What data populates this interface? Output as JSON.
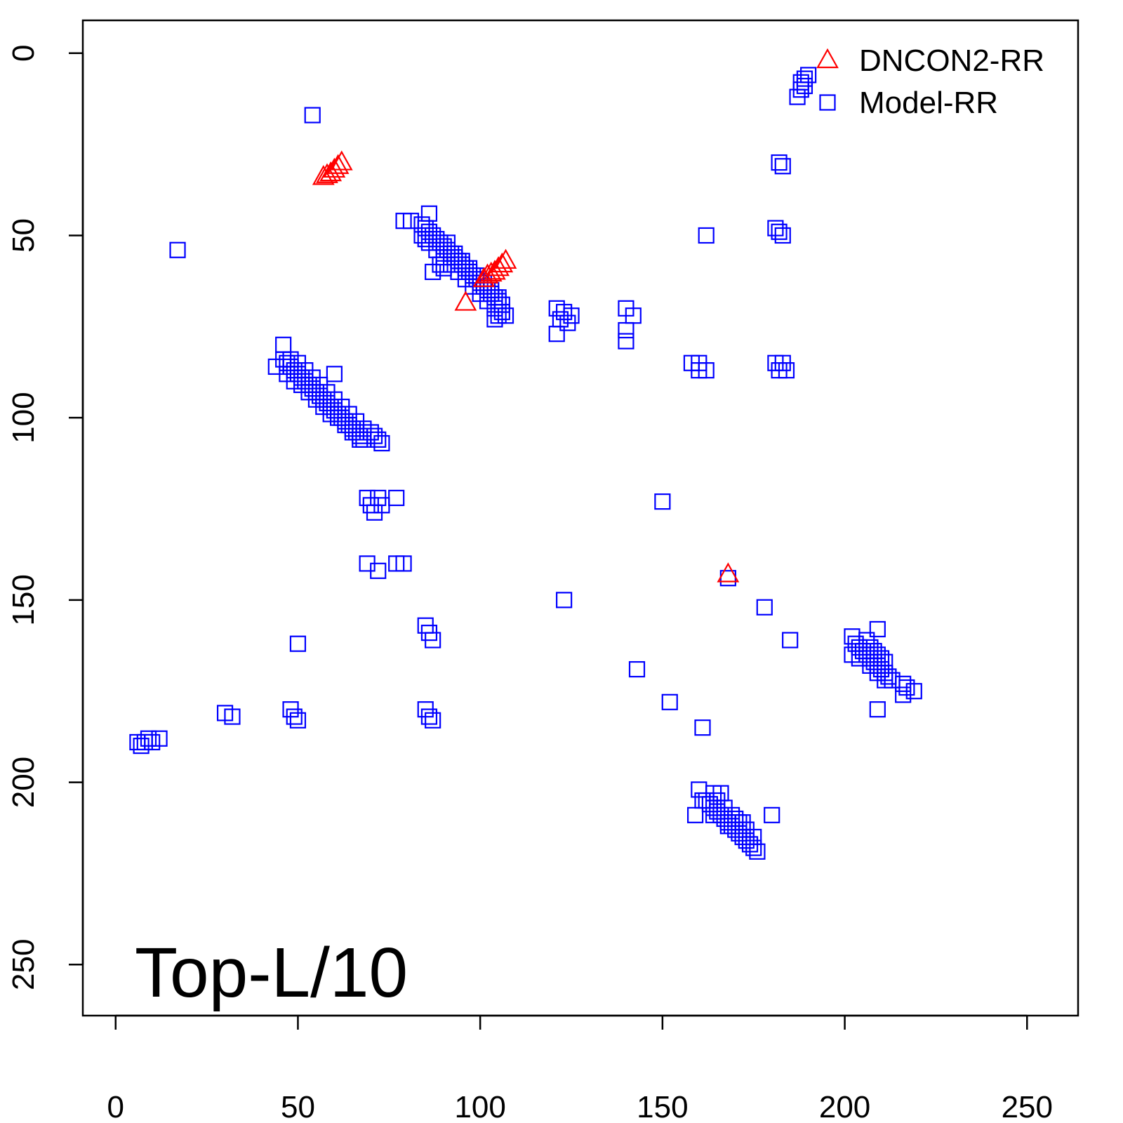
{
  "chart_data": {
    "type": "scatter",
    "title": "",
    "xlabel": "",
    "ylabel": "",
    "xlim": [
      -9,
      264
    ],
    "ylim": [
      -9,
      264
    ],
    "y_reversed": true,
    "xticks": [
      0,
      50,
      100,
      150,
      200,
      250
    ],
    "yticks": [
      0,
      50,
      100,
      150,
      200,
      250
    ],
    "annotation": "Top-L/10",
    "legend": {
      "position": "top-right",
      "entries": [
        {
          "name": "DNCON2-RR",
          "marker": "triangle",
          "color": "#ff0000"
        },
        {
          "name": "Model-RR",
          "marker": "square",
          "color": "#0000ff"
        }
      ]
    },
    "series": [
      {
        "name": "DNCON2-RR",
        "marker": "triangle",
        "color": "#ff0000",
        "points": [
          [
            57,
            34
          ],
          [
            58,
            33.5
          ],
          [
            59,
            33
          ],
          [
            60,
            32
          ],
          [
            61,
            31
          ],
          [
            62,
            30
          ],
          [
            101,
            62
          ],
          [
            102,
            61
          ],
          [
            103,
            60.5
          ],
          [
            104,
            60
          ],
          [
            105,
            59
          ],
          [
            106,
            58
          ],
          [
            107,
            57
          ],
          [
            96,
            68.5
          ],
          [
            168,
            143
          ]
        ]
      },
      {
        "name": "Model-RR",
        "marker": "square",
        "color": "#0000ff",
        "points": [
          [
            54,
            17
          ],
          [
            17,
            54
          ],
          [
            188,
            8
          ],
          [
            189,
            7
          ],
          [
            190,
            6
          ],
          [
            189,
            9
          ],
          [
            188,
            10
          ],
          [
            187,
            12
          ],
          [
            182,
            30
          ],
          [
            183,
            31
          ],
          [
            162,
            50
          ],
          [
            181,
            48
          ],
          [
            182,
            49
          ],
          [
            183,
            50
          ],
          [
            86,
            44
          ],
          [
            79,
            46
          ],
          [
            81,
            46
          ],
          [
            84,
            47
          ],
          [
            85,
            48
          ],
          [
            86,
            49
          ],
          [
            87,
            50
          ],
          [
            88,
            51
          ],
          [
            89,
            52
          ],
          [
            90,
            53
          ],
          [
            91,
            54
          ],
          [
            92,
            55
          ],
          [
            93,
            56
          ],
          [
            94,
            57
          ],
          [
            95,
            58
          ],
          [
            96,
            59
          ],
          [
            97,
            60
          ],
          [
            98,
            61
          ],
          [
            99,
            62
          ],
          [
            100,
            63
          ],
          [
            101,
            64
          ],
          [
            102,
            65
          ],
          [
            103,
            66
          ],
          [
            104,
            67
          ],
          [
            105,
            68
          ],
          [
            106,
            69
          ],
          [
            84,
            50
          ],
          [
            85,
            51
          ],
          [
            86,
            52
          ],
          [
            88,
            54
          ],
          [
            90,
            56
          ],
          [
            92,
            58
          ],
          [
            94,
            60
          ],
          [
            96,
            62
          ],
          [
            98,
            64
          ],
          [
            100,
            66
          ],
          [
            102,
            68
          ],
          [
            104,
            70
          ],
          [
            91,
            52
          ],
          [
            93,
            55
          ],
          [
            95,
            57
          ],
          [
            97,
            59
          ],
          [
            99,
            61
          ],
          [
            101,
            63
          ],
          [
            103,
            65
          ],
          [
            105,
            67
          ],
          [
            87,
            60
          ],
          [
            89,
            58
          ],
          [
            90,
            59
          ],
          [
            106,
            71
          ],
          [
            105,
            72
          ],
          [
            104,
            73
          ],
          [
            107,
            72
          ],
          [
            121,
            70
          ],
          [
            123,
            71
          ],
          [
            125,
            72
          ],
          [
            122,
            73
          ],
          [
            124,
            74
          ],
          [
            121,
            77
          ],
          [
            140,
            70
          ],
          [
            142,
            72
          ],
          [
            140,
            76
          ],
          [
            140,
            79
          ],
          [
            158,
            85
          ],
          [
            160,
            85
          ],
          [
            160,
            87
          ],
          [
            162,
            87
          ],
          [
            181,
            85
          ],
          [
            183,
            85
          ],
          [
            182,
            87
          ],
          [
            184,
            87
          ],
          [
            46,
            80
          ],
          [
            44,
            86
          ],
          [
            46,
            84
          ],
          [
            47,
            85
          ],
          [
            48,
            86
          ],
          [
            49,
            87
          ],
          [
            50,
            88
          ],
          [
            51,
            89
          ],
          [
            52,
            90
          ],
          [
            53,
            91
          ],
          [
            54,
            92
          ],
          [
            55,
            93
          ],
          [
            56,
            94
          ],
          [
            57,
            95
          ],
          [
            58,
            96
          ],
          [
            59,
            97
          ],
          [
            60,
            98
          ],
          [
            61,
            99
          ],
          [
            62,
            100
          ],
          [
            63,
            101
          ],
          [
            64,
            102
          ],
          [
            65,
            103
          ],
          [
            66,
            104
          ],
          [
            67,
            105
          ],
          [
            68,
            106
          ],
          [
            48,
            84
          ],
          [
            50,
            85
          ],
          [
            52,
            87
          ],
          [
            54,
            89
          ],
          [
            56,
            91
          ],
          [
            58,
            93
          ],
          [
            60,
            95
          ],
          [
            62,
            97
          ],
          [
            64,
            99
          ],
          [
            66,
            101
          ],
          [
            68,
            103
          ],
          [
            47,
            88
          ],
          [
            49,
            90
          ],
          [
            51,
            91
          ],
          [
            53,
            93
          ],
          [
            55,
            95
          ],
          [
            57,
            97
          ],
          [
            59,
            99
          ],
          [
            61,
            100
          ],
          [
            63,
            102
          ],
          [
            65,
            104
          ],
          [
            67,
            106
          ],
          [
            60,
            88
          ],
          [
            70,
            104
          ],
          [
            71,
            105
          ],
          [
            72,
            106
          ],
          [
            73,
            107
          ],
          [
            69,
            122
          ],
          [
            70,
            124
          ],
          [
            71,
            126
          ],
          [
            72,
            122
          ],
          [
            73,
            124
          ],
          [
            77,
            122
          ],
          [
            69,
            140
          ],
          [
            72,
            142
          ],
          [
            77,
            140
          ],
          [
            79,
            140
          ],
          [
            150,
            123
          ],
          [
            168,
            144
          ],
          [
            178,
            152
          ],
          [
            185,
            161
          ],
          [
            123,
            150
          ],
          [
            143,
            169
          ],
          [
            152,
            178
          ],
          [
            161,
            185
          ],
          [
            85,
            157
          ],
          [
            86,
            159
          ],
          [
            87,
            161
          ],
          [
            50,
            162
          ],
          [
            30,
            181
          ],
          [
            32,
            182
          ],
          [
            48,
            180
          ],
          [
            49,
            182
          ],
          [
            50,
            183
          ],
          [
            85,
            180
          ],
          [
            86,
            182
          ],
          [
            87,
            183
          ],
          [
            6,
            189
          ],
          [
            7,
            190
          ],
          [
            8,
            189
          ],
          [
            9,
            188
          ],
          [
            10,
            189
          ],
          [
            12,
            188
          ],
          [
            160,
            202
          ],
          [
            161,
            205
          ],
          [
            159,
            209
          ],
          [
            164,
            203
          ],
          [
            166,
            203
          ],
          [
            180,
            209
          ],
          [
            162,
            205
          ],
          [
            163,
            206
          ],
          [
            164,
            207
          ],
          [
            165,
            208
          ],
          [
            166,
            209
          ],
          [
            167,
            210
          ],
          [
            168,
            211
          ],
          [
            169,
            212
          ],
          [
            170,
            213
          ],
          [
            171,
            214
          ],
          [
            172,
            215
          ],
          [
            173,
            216
          ],
          [
            174,
            217
          ],
          [
            175,
            218
          ],
          [
            176,
            219
          ],
          [
            165,
            205
          ],
          [
            167,
            207
          ],
          [
            169,
            209
          ],
          [
            171,
            211
          ],
          [
            173,
            213
          ],
          [
            175,
            215
          ],
          [
            164,
            209
          ],
          [
            168,
            212
          ],
          [
            170,
            210
          ],
          [
            172,
            211
          ],
          [
            209,
            158
          ],
          [
            202,
            160
          ],
          [
            203,
            162
          ],
          [
            204,
            163
          ],
          [
            205,
            164
          ],
          [
            206,
            165
          ],
          [
            207,
            166
          ],
          [
            208,
            167
          ],
          [
            209,
            168
          ],
          [
            210,
            169
          ],
          [
            211,
            170
          ],
          [
            212,
            171
          ],
          [
            213,
            172
          ],
          [
            206,
            161
          ],
          [
            207,
            163
          ],
          [
            208,
            164
          ],
          [
            209,
            165
          ],
          [
            210,
            166
          ],
          [
            211,
            167
          ],
          [
            202,
            165
          ],
          [
            204,
            166
          ],
          [
            207,
            168
          ],
          [
            209,
            170
          ],
          [
            211,
            172
          ],
          [
            216,
            173
          ],
          [
            217,
            174
          ],
          [
            219,
            175
          ],
          [
            216,
            176
          ],
          [
            209,
            180
          ]
        ]
      }
    ]
  }
}
